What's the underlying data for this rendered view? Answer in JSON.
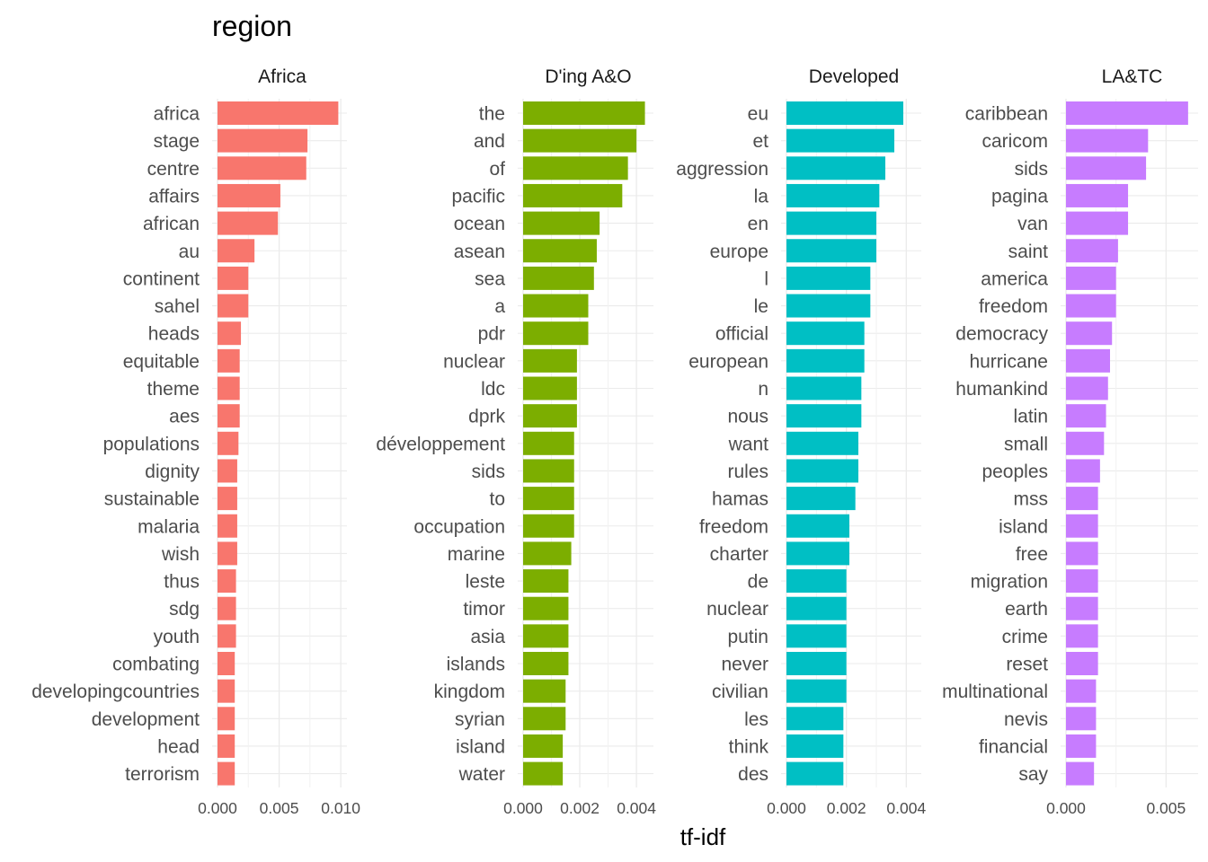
{
  "chart_data": {
    "type": "bar",
    "orientation": "horizontal",
    "title": "region",
    "xlabel": "tf-idf",
    "ylabel": "",
    "grid": true,
    "facets": [
      {
        "name": "Africa",
        "color": "#F8766D",
        "xlim": [
          0,
          0.0105
        ],
        "ticks": [
          0,
          0.005,
          0.01
        ],
        "tick_labels": [
          "0.000",
          "0.005",
          "0.010"
        ],
        "categories": [
          "africa",
          "stage",
          "centre",
          "affairs",
          "african",
          "au",
          "continent",
          "sahel",
          "heads",
          "equitable",
          "theme",
          "aes",
          "populations",
          "dignity",
          "sustainable",
          "malaria",
          "wish",
          "thus",
          "sdg",
          "youth",
          "combating",
          "developingcountries",
          "development",
          "head",
          "terrorism"
        ],
        "values": [
          0.0098,
          0.0073,
          0.0072,
          0.0051,
          0.0049,
          0.003,
          0.0025,
          0.0025,
          0.0019,
          0.0018,
          0.0018,
          0.0018,
          0.0017,
          0.0016,
          0.0016,
          0.0016,
          0.0016,
          0.0015,
          0.0015,
          0.0015,
          0.0014,
          0.0014,
          0.0014,
          0.0014,
          0.0014
        ]
      },
      {
        "name": "D'ing A&O",
        "color": "#7CAE00",
        "xlim": [
          0,
          0.0046
        ],
        "ticks": [
          0,
          0.002,
          0.004
        ],
        "tick_labels": [
          "0.000",
          "0.002",
          "0.004"
        ],
        "categories": [
          "the",
          "and",
          "of",
          "pacific",
          "ocean",
          "asean",
          "sea",
          "a",
          "pdr",
          "nuclear",
          "ldc",
          "dprk",
          "développement",
          "sids",
          "to",
          "occupation",
          "marine",
          "leste",
          "timor",
          "asia",
          "islands",
          "kingdom",
          "syrian",
          "island",
          "water"
        ],
        "values": [
          0.0043,
          0.004,
          0.0037,
          0.0035,
          0.0027,
          0.0026,
          0.0025,
          0.0023,
          0.0023,
          0.0019,
          0.0019,
          0.0019,
          0.0018,
          0.0018,
          0.0018,
          0.0018,
          0.0017,
          0.0016,
          0.0016,
          0.0016,
          0.0016,
          0.0015,
          0.0015,
          0.0014,
          0.0014
        ]
      },
      {
        "name": "Developed",
        "color": "#00BFC4",
        "xlim": [
          0,
          0.0045
        ],
        "ticks": [
          0,
          0.002,
          0.004
        ],
        "tick_labels": [
          "0.000",
          "0.002",
          "0.004"
        ],
        "categories": [
          "eu",
          "et",
          "aggression",
          "la",
          "en",
          "europe",
          "l",
          "le",
          "official",
          "european",
          "n",
          "nous",
          "want",
          "rules",
          "hamas",
          "freedom",
          "charter",
          "de",
          "nuclear",
          "putin",
          "never",
          "civilian",
          "les",
          "think",
          "des"
        ],
        "values": [
          0.0039,
          0.0036,
          0.0033,
          0.0031,
          0.003,
          0.003,
          0.0028,
          0.0028,
          0.0026,
          0.0026,
          0.0025,
          0.0025,
          0.0024,
          0.0024,
          0.0023,
          0.0021,
          0.0021,
          0.002,
          0.002,
          0.002,
          0.002,
          0.002,
          0.0019,
          0.0019,
          0.0019
        ]
      },
      {
        "name": "LA&TC",
        "color": "#C77CFF",
        "xlim": [
          0,
          0.0066
        ],
        "ticks": [
          0,
          0.005
        ],
        "tick_labels": [
          "0.000",
          "0.005"
        ],
        "categories": [
          "caribbean",
          "caricom",
          "sids",
          "pagina",
          "van",
          "saint",
          "america",
          "freedom",
          "democracy",
          "hurricane",
          "humankind",
          "latin",
          "small",
          "peoples",
          "mss",
          "island",
          "free",
          "migration",
          "earth",
          "crime",
          "reset",
          "multinational",
          "nevis",
          "financial",
          "say"
        ],
        "values": [
          0.0061,
          0.0041,
          0.004,
          0.0031,
          0.0031,
          0.0026,
          0.0025,
          0.0025,
          0.0023,
          0.0022,
          0.0021,
          0.002,
          0.0019,
          0.0017,
          0.0016,
          0.0016,
          0.0016,
          0.0016,
          0.0016,
          0.0016,
          0.0016,
          0.0015,
          0.0015,
          0.0015,
          0.0014
        ]
      }
    ]
  }
}
